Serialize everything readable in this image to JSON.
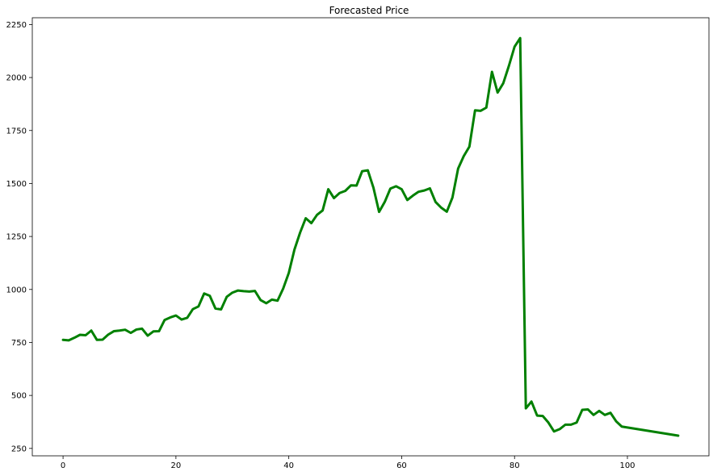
{
  "chart_data": {
    "type": "line",
    "title": "Forecasted Price",
    "xlabel": "",
    "ylabel": "",
    "xlim": [
      -5.45,
      114.45
    ],
    "ylim": [
      215,
      2282
    ],
    "xticks": [
      0,
      20,
      40,
      60,
      80,
      100
    ],
    "xtick_labels": [
      "0",
      "20",
      "40",
      "60",
      "80",
      "100"
    ],
    "yticks": [
      250,
      500,
      750,
      1000,
      1250,
      1500,
      1750,
      2000,
      2250
    ],
    "ytick_labels": [
      "250",
      "500",
      "750",
      "1000",
      "1250",
      "1500",
      "1750",
      "2000",
      "2250"
    ],
    "grid": false,
    "legend": "none",
    "series": [
      {
        "color": "#008000",
        "x": [
          0,
          1,
          2,
          3,
          4,
          5,
          6,
          7,
          8,
          9,
          10,
          11,
          12,
          13,
          14,
          15,
          16,
          17,
          18,
          19,
          20,
          21,
          22,
          23,
          24,
          25,
          26,
          27,
          28,
          29,
          30,
          31,
          32,
          33,
          34,
          35,
          36,
          37,
          38,
          39,
          40,
          41,
          42,
          43,
          44,
          45,
          46,
          47,
          48,
          49,
          50,
          51,
          52,
          53,
          54,
          55,
          56,
          57,
          58,
          59,
          60,
          61,
          62,
          63,
          64,
          65,
          66,
          67,
          68,
          69,
          70,
          71,
          72,
          73,
          74,
          75,
          76,
          77,
          78,
          79,
          80,
          81,
          82,
          83,
          84,
          85,
          86,
          87,
          88,
          89,
          90,
          91,
          92,
          93,
          94,
          95,
          96,
          97,
          98,
          99,
          109
        ],
        "y": [
          762,
          760,
          772,
          786,
          784,
          806,
          762,
          763,
          787,
          803,
          806,
          810,
          795,
          811,
          815,
          782,
          802,
          803,
          856,
          868,
          877,
          858,
          866,
          907,
          920,
          981,
          970,
          910,
          906,
          965,
          985,
          995,
          992,
          990,
          993,
          950,
          935,
          952,
          947,
          1004,
          1078,
          1188,
          1268,
          1336,
          1313,
          1352,
          1373,
          1473,
          1431,
          1455,
          1465,
          1491,
          1490,
          1558,
          1562,
          1480,
          1366,
          1413,
          1476,
          1487,
          1473,
          1422,
          1443,
          1461,
          1467,
          1477,
          1413,
          1386,
          1367,
          1434,
          1570,
          1629,
          1674,
          1845,
          1843,
          1858,
          2027,
          1929,
          1973,
          2055,
          2145,
          2186,
          439,
          471,
          405,
          403,
          372,
          330,
          341,
          362,
          362,
          372,
          432,
          434,
          408,
          427,
          408,
          418,
          378,
          353,
          310
        ]
      }
    ]
  }
}
